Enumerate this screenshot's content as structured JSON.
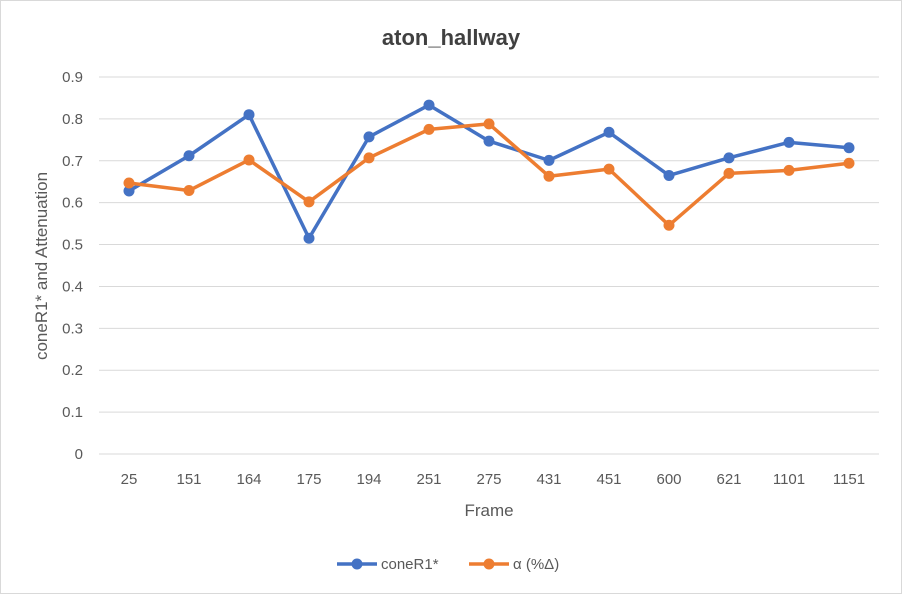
{
  "chart_data": {
    "type": "line",
    "title": "aton_hallway",
    "xlabel": "Frame",
    "ylabel": "coneR1* and Attenuation",
    "categories": [
      "25",
      "151",
      "164",
      "175",
      "194",
      "251",
      "275",
      "431",
      "451",
      "600",
      "621",
      "1101",
      "1151"
    ],
    "ylim": [
      0,
      0.9
    ],
    "yticks": [
      "0",
      "0.1",
      "0.2",
      "0.3",
      "0.4",
      "0.5",
      "0.6",
      "0.7",
      "0.8",
      "0.9"
    ],
    "grid": true,
    "legend_position": "bottom",
    "series": [
      {
        "name": "coneR1*",
        "color": "#4472C4",
        "values": [
          0.628,
          0.712,
          0.81,
          0.515,
          0.757,
          0.833,
          0.747,
          0.701,
          0.768,
          0.665,
          0.707,
          0.744,
          0.731
        ]
      },
      {
        "name": "α (%Δ)",
        "color": "#ED7D31",
        "values": [
          0.647,
          0.629,
          0.702,
          0.602,
          0.707,
          0.775,
          0.788,
          0.663,
          0.68,
          0.546,
          0.67,
          0.677,
          0.694
        ]
      }
    ]
  }
}
